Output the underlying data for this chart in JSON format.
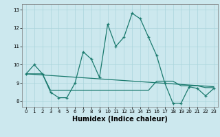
{
  "title": "",
  "xlabel": "Humidex (Indice chaleur)",
  "background_color": "#cce8ee",
  "grid_color": "#aad4dc",
  "line_color": "#1a7a6e",
  "xlim": [
    -0.5,
    23.5
  ],
  "ylim": [
    7.7,
    13.3
  ],
  "yticks": [
    8,
    9,
    10,
    11,
    12,
    13
  ],
  "xticks": [
    0,
    1,
    2,
    3,
    4,
    5,
    6,
    7,
    8,
    9,
    10,
    11,
    12,
    13,
    14,
    15,
    16,
    17,
    18,
    19,
    20,
    21,
    22,
    23
  ],
  "line1_x": [
    0,
    1,
    2,
    3,
    4,
    5,
    6,
    7,
    8,
    9,
    10,
    11,
    12,
    13,
    14,
    15,
    16,
    17,
    18,
    19,
    20,
    21,
    22,
    23
  ],
  "line1_y": [
    9.5,
    10.0,
    9.5,
    8.5,
    8.2,
    8.2,
    9.0,
    10.7,
    10.3,
    9.3,
    12.2,
    11.0,
    11.5,
    12.8,
    12.5,
    11.5,
    10.5,
    9.0,
    7.9,
    7.9,
    8.8,
    8.7,
    8.3,
    8.7
  ],
  "line2_x": [
    0,
    23
  ],
  "line2_y": [
    9.5,
    8.8
  ],
  "line3_x": [
    0,
    2,
    3,
    4,
    5,
    6,
    7,
    8,
    9,
    10,
    11,
    12,
    13,
    14,
    15,
    16,
    17,
    18,
    19,
    20,
    21,
    22,
    23
  ],
  "line3_y": [
    9.5,
    9.5,
    8.6,
    8.6,
    8.6,
    8.6,
    8.6,
    8.6,
    8.6,
    8.6,
    8.6,
    8.6,
    8.6,
    8.6,
    8.6,
    9.1,
    9.1,
    9.1,
    8.85,
    8.85,
    8.85,
    8.75,
    8.75
  ],
  "xlabel_fontsize": 7,
  "tick_fontsize": 5,
  "line_width": 0.9,
  "marker_size": 3.5
}
